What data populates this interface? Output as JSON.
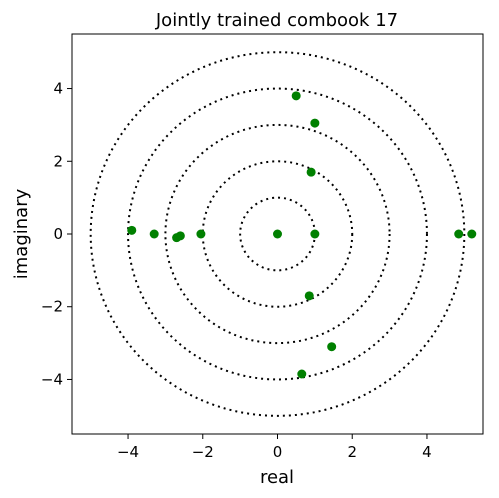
{
  "chart_data": {
    "type": "scatter",
    "title": "Jointly trained combook 17",
    "xlabel": "real",
    "ylabel": "imaginary",
    "xlim": [
      -5.5,
      5.5
    ],
    "ylim": [
      -5.5,
      5.5
    ],
    "xticks": [
      {
        "value": -4,
        "label": "−4"
      },
      {
        "value": -2,
        "label": "−2"
      },
      {
        "value": 0,
        "label": "0"
      },
      {
        "value": 2,
        "label": "2"
      },
      {
        "value": 4,
        "label": "4"
      }
    ],
    "yticks": [
      {
        "value": -4,
        "label": "−4"
      },
      {
        "value": -2,
        "label": "−2"
      },
      {
        "value": 0,
        "label": "0"
      },
      {
        "value": 2,
        "label": "2"
      },
      {
        "value": 4,
        "label": "4"
      }
    ],
    "grid": false,
    "point_color": "#008000",
    "circle_color": "#000000",
    "reference_circles": [
      1,
      2,
      3,
      4,
      5
    ],
    "points": [
      {
        "x": 0.0,
        "y": 0.0
      },
      {
        "x": 1.0,
        "y": 0.0
      },
      {
        "x": -2.05,
        "y": 0.0
      },
      {
        "x": -2.6,
        "y": -0.05
      },
      {
        "x": -2.7,
        "y": -0.1
      },
      {
        "x": -3.3,
        "y": 0.0
      },
      {
        "x": -3.9,
        "y": 0.1
      },
      {
        "x": 4.85,
        "y": 0.0
      },
      {
        "x": 5.2,
        "y": 0.0
      },
      {
        "x": 0.9,
        "y": 1.7
      },
      {
        "x": 0.85,
        "y": -1.7
      },
      {
        "x": 0.5,
        "y": 3.8
      },
      {
        "x": 1.0,
        "y": 3.05
      },
      {
        "x": 1.45,
        "y": -3.1
      },
      {
        "x": 0.65,
        "y": -3.85
      }
    ]
  }
}
